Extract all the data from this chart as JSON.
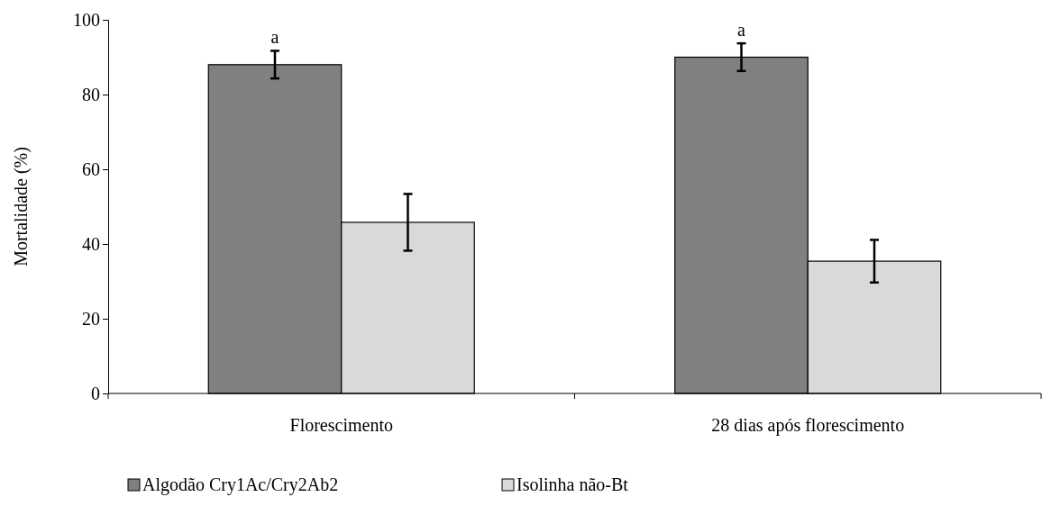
{
  "chart_data": {
    "type": "bar",
    "ylabel": "Mortalidade (%)",
    "categories": [
      "Florescimento",
      "28 dias após florescimento"
    ],
    "series": [
      {
        "name": "Algodão Cry1Ac/Cry2Ab2",
        "color": "#808080",
        "values": [
          88,
          90
        ],
        "errors": [
          3.7,
          3.7
        ]
      },
      {
        "name": "Isolinha não-Bt",
        "color": "#d9d9d9",
        "values": [
          45.8,
          35.4
        ],
        "errors": [
          7.6,
          5.7
        ]
      }
    ],
    "ylim": [
      0,
      100
    ],
    "yticks": [
      0,
      20,
      40,
      60,
      80,
      100
    ],
    "grid": false,
    "legend": "bottom",
    "annotations": [
      "a",
      "a"
    ]
  }
}
